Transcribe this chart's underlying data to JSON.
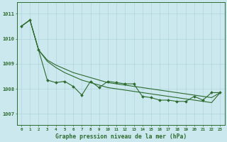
{
  "title": "Graphe pression niveau de la mer (hPa)",
  "bg_color": "#cce8ef",
  "grid_color": "#b0d4dc",
  "line_color": "#2d6b2d",
  "xlim": [
    -0.5,
    23.5
  ],
  "ylim": [
    1006.55,
    1011.45
  ],
  "yticks": [
    1007,
    1008,
    1009,
    1010,
    1011
  ],
  "xticks": [
    0,
    1,
    2,
    3,
    4,
    5,
    6,
    7,
    8,
    9,
    10,
    11,
    12,
    13,
    14,
    15,
    16,
    17,
    18,
    19,
    20,
    21,
    22,
    23
  ],
  "series_zigzag": [
    1010.5,
    1010.75,
    1009.55,
    1008.35,
    1008.25,
    1008.3,
    1008.1,
    1007.75,
    1008.3,
    1008.05,
    1008.3,
    1008.25,
    1008.2,
    1008.2,
    1007.7,
    1007.65,
    1007.55,
    1007.55,
    1007.5,
    1007.5,
    1007.7,
    1007.55,
    1007.85,
    1007.85
  ],
  "series_upper_smooth": [
    1010.5,
    1010.75,
    1009.55,
    1009.15,
    1008.95,
    1008.8,
    1008.65,
    1008.55,
    1008.45,
    1008.35,
    1008.25,
    1008.2,
    1008.15,
    1008.1,
    1008.05,
    1008.0,
    1007.95,
    1007.9,
    1007.85,
    1007.8,
    1007.75,
    1007.7,
    1007.65,
    1007.85
  ],
  "series_lower_smooth": [
    1010.5,
    1010.75,
    1009.55,
    1009.1,
    1008.85,
    1008.65,
    1008.5,
    1008.35,
    1008.25,
    1008.15,
    1008.05,
    1008.0,
    1007.95,
    1007.9,
    1007.85,
    1007.8,
    1007.75,
    1007.7,
    1007.65,
    1007.6,
    1007.55,
    1007.5,
    1007.45,
    1007.85
  ]
}
